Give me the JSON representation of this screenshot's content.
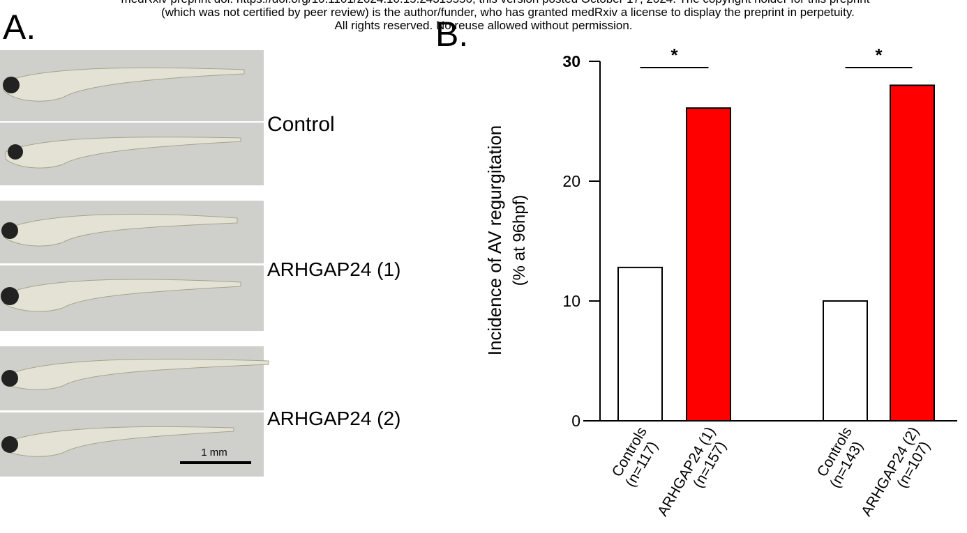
{
  "header": {
    "lines": [
      "medRxiv preprint doi: https://doi.org/10.1101/2024.10.15.24315556; this version posted October 17, 2024. The copyright holder for this preprint",
      "(which was not certified by peer review) is the author/funder, who has granted medRxiv a license to display the preprint in perpetuity.",
      "All rights reserved. No reuse allowed without permission."
    ]
  },
  "panel_a": {
    "label": "A.",
    "groups": [
      "Control",
      "ARHGAP24 (1)",
      "ARHGAP24 (2)"
    ],
    "scale_bar": "1 mm"
  },
  "panel_b": {
    "label": "B."
  },
  "chart_data": {
    "type": "bar",
    "y_label": [
      "Incidence of AV regurgitation",
      "(% at 96hpf)"
    ],
    "categories": [
      [
        "Controls",
        "(n=117)"
      ],
      [
        "ARHGAP24 (1)",
        "(n=157)"
      ],
      [
        "Controls",
        "(n=143)"
      ],
      [
        "ARHGAP24 (2)",
        "(n=107)"
      ]
    ],
    "values": [
      12.8,
      26.1,
      10.0,
      28.0
    ],
    "colors": [
      "#ffffff",
      "#ff0000",
      "#ffffff",
      "#ff0000"
    ],
    "ylim": [
      0,
      30
    ],
    "yticks": [
      0,
      10,
      20,
      30
    ],
    "annotations": [
      {
        "text": "*"
      },
      {
        "text": "*"
      }
    ]
  }
}
